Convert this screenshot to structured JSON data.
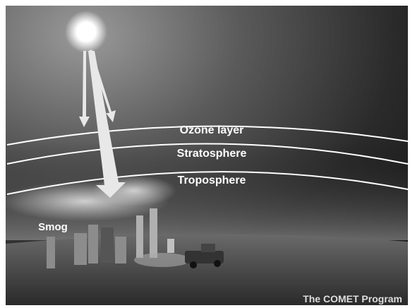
{
  "layers": [
    "Ozone layer",
    "Stratosphere",
    "Troposphere"
  ],
  "smog_label": "Smog",
  "credit": "The COMET Program"
}
